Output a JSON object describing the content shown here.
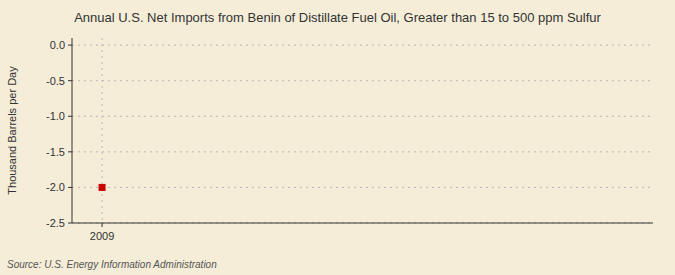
{
  "chart_data": {
    "type": "scatter",
    "title": "Annual U.S. Net Imports from Benin of Distillate Fuel Oil, Greater than 15 to 500 ppm Sulfur",
    "ylabel": "Thousand Barrels per Day",
    "annotations": [
      "Source: U.S. Energy Information Administration"
    ],
    "x": [
      2009
    ],
    "values": [
      -2.0
    ],
    "color": "#cc0000",
    "marker": "square",
    "xlim": [
      2008.4,
      2020
    ],
    "ylim": [
      -2.5,
      0.1
    ],
    "xticks": [
      2009
    ],
    "yticks": [
      {
        "value": 0.0,
        "label": "0.0"
      },
      -0.5,
      {
        "value": -1.0,
        "label": "-1.0"
      },
      -1.5,
      {
        "value": -2.0,
        "label": "-2.0"
      },
      -2.5
    ],
    "grid": true
  }
}
